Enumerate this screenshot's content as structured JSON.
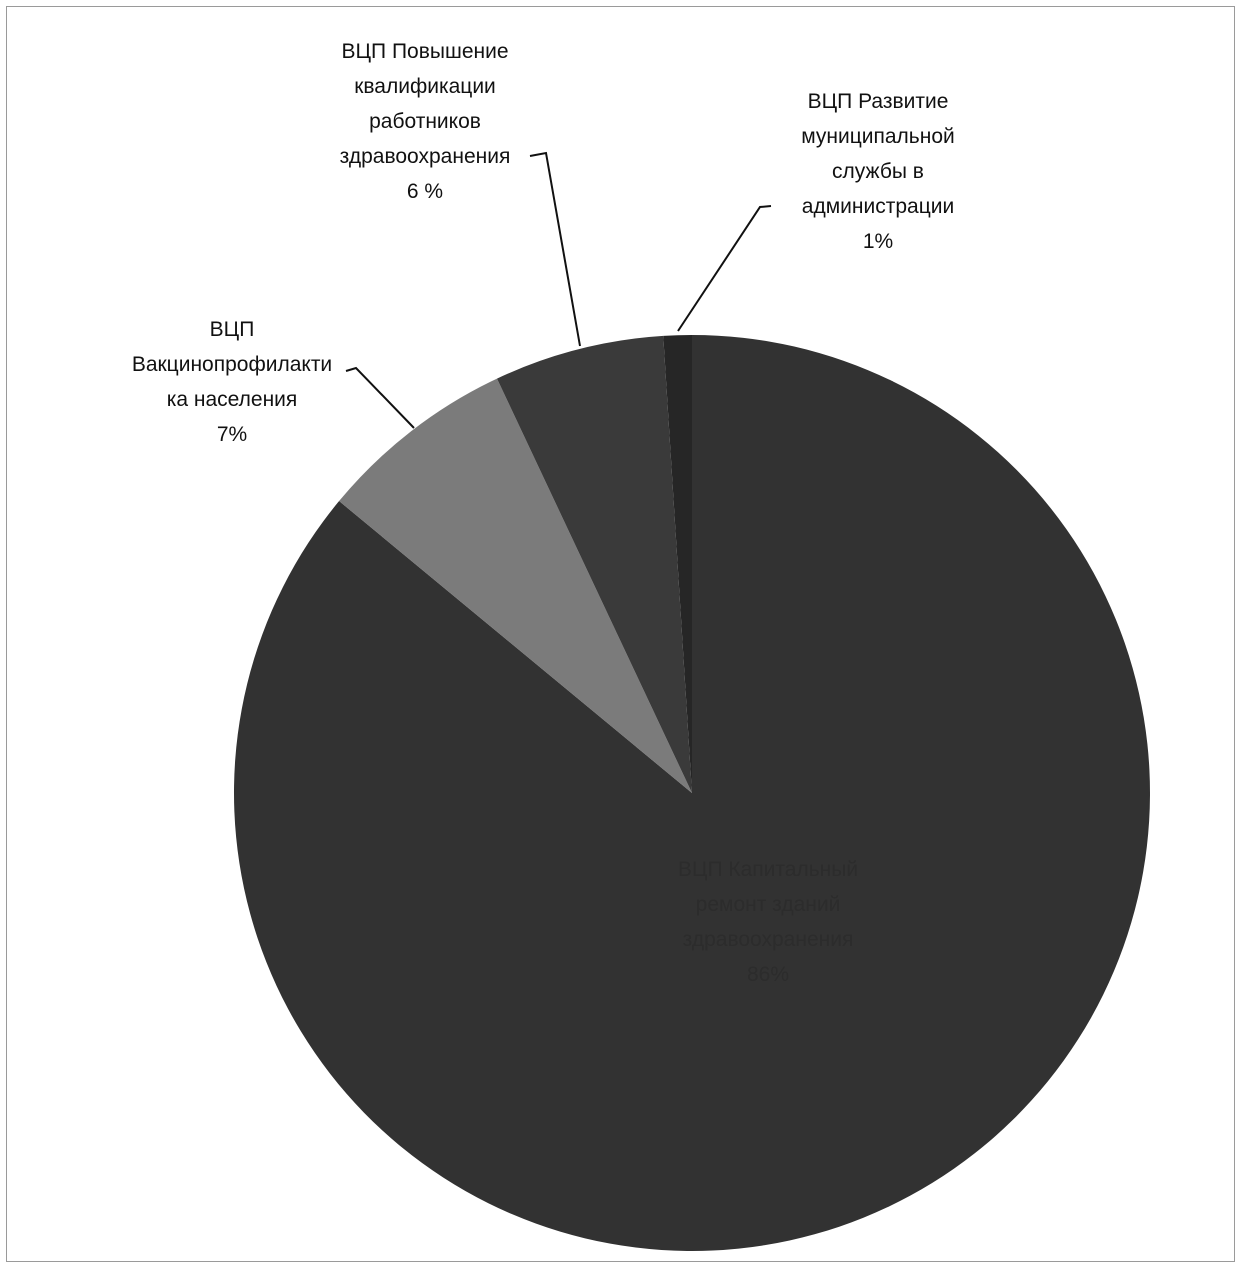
{
  "chart_data": {
    "type": "pie",
    "title": "",
    "slices": [
      {
        "lines": [
          "ВЦП Капитальный",
          "ремонт зданий",
          "здравоохранения",
          "86%"
        ],
        "value": 86,
        "color": "#323232"
      },
      {
        "lines": [
          "ВЦП",
          "Вакцинопрофилакти",
          "ка населения",
          "7%"
        ],
        "value": 7,
        "color": "#7b7b7b"
      },
      {
        "lines": [
          "ВЦП Повышение",
          "квалификации",
          "работников",
          "здравоохранения",
          "6 %"
        ],
        "value": 6,
        "color": "#3a3a3a"
      },
      {
        "lines": [
          "ВЦП Развитие",
          "муниципальной",
          "службы в",
          "администрации",
          "1%"
        ],
        "value": 1,
        "color": "#262626"
      }
    ]
  }
}
